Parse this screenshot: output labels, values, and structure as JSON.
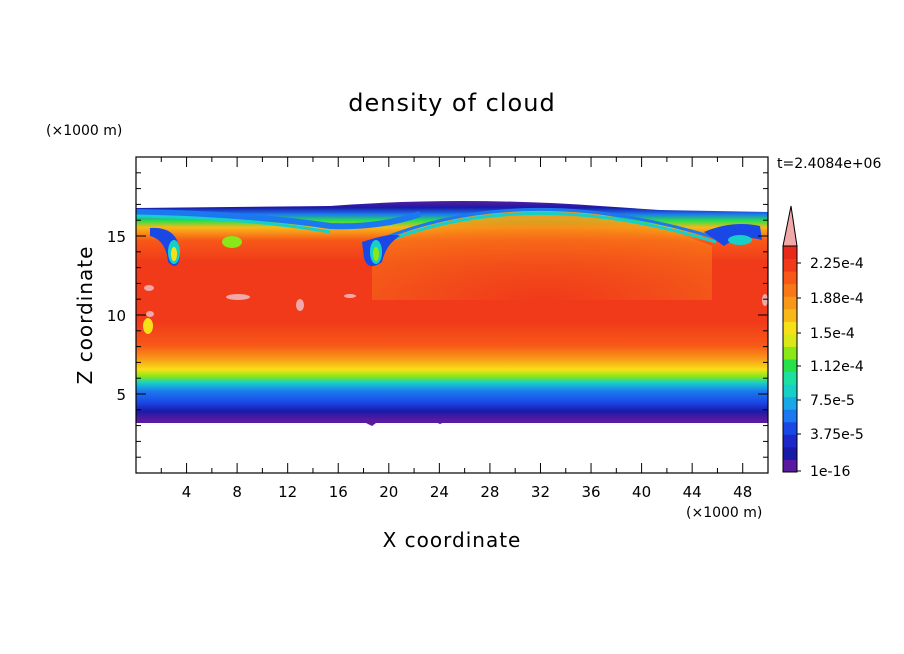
{
  "chart_data": {
    "type": "heatmap",
    "title": "density of cloud",
    "xlabel": "X coordinate",
    "ylabel": "Z coordinate",
    "x_unit": "(×1000 m)",
    "y_unit": "(×1000 m)",
    "time_label": "t=2.4084e+06",
    "xlim": [
      0,
      50
    ],
    "ylim": [
      0,
      20
    ],
    "x_ticks": [
      4,
      8,
      12,
      16,
      20,
      24,
      28,
      32,
      36,
      40,
      44,
      48
    ],
    "y_ticks": [
      5,
      10,
      15
    ],
    "colorbar": {
      "min_label": "1e-16",
      "labels": [
        "2.25e-4",
        "1.88e-4",
        "1.5e-4",
        "1.12e-4",
        "7.5e-5",
        "3.75e-5",
        "1e-16"
      ],
      "colors": [
        "#5a1aa0",
        "#1a1aa8",
        "#1c28c8",
        "#1a48e6",
        "#1c78f0",
        "#18a8e8",
        "#16d0c8",
        "#1ce0a0",
        "#28e04a",
        "#8ae818",
        "#d8e818",
        "#f8e018",
        "#f8b818",
        "#f89818",
        "#f87818",
        "#f85818",
        "#f03a1a",
        "#e82a1a"
      ],
      "overflow_color": "#f0a8a8"
    },
    "cloud_layer": {
      "base_km": 3.5,
      "top_km": 16.5,
      "dome_peak_x_km": 32,
      "dome_peak_top_km": 16.9,
      "dense_core_km": [
        8.5,
        15.5
      ],
      "eddies_at_x_km": [
        3,
        19,
        47
      ]
    }
  }
}
